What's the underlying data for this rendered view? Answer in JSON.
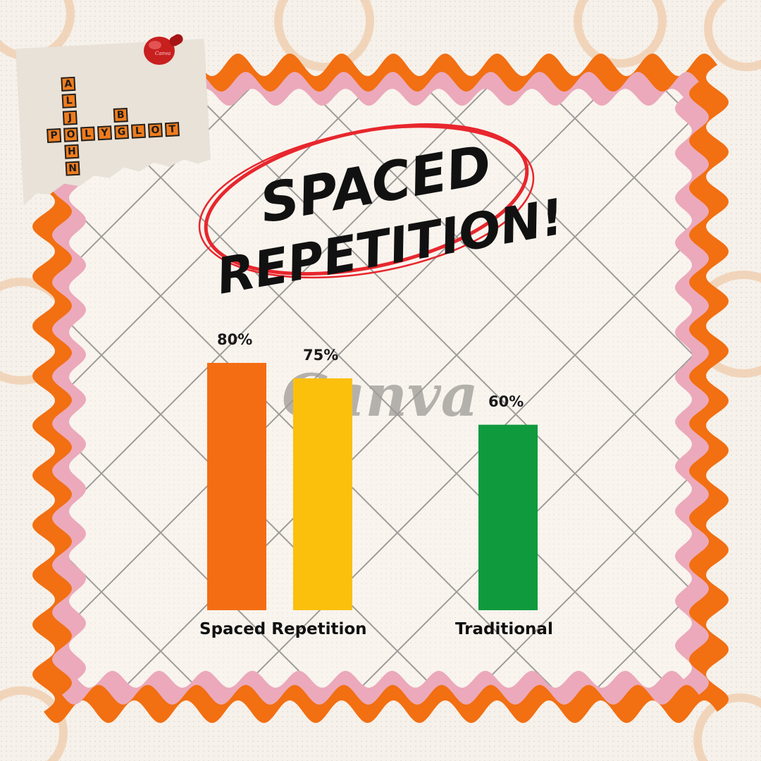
{
  "brand": {
    "logo_word_across": "POLYGLOT",
    "logo_word_down": "ALJOHN",
    "logo_letter_extra": "B",
    "watermark": "Canva",
    "pin_mark": "Canva"
  },
  "title": {
    "line1": "SPACED",
    "line2": "REPETITION!"
  },
  "colors": {
    "frame_outer": "#f26f12",
    "frame_inner": "#eba9bb",
    "paper": "#f9f4ee",
    "grid": "#555555",
    "circle": "#e8262d"
  },
  "chart_data": {
    "type": "bar",
    "ylim": [
      0,
      100
    ],
    "grid": false,
    "bars": [
      {
        "category": "Spaced Repetition",
        "value": 80,
        "label": "80%",
        "color": "#f46d12"
      },
      {
        "category": "Spaced Repetition",
        "value": 75,
        "label": "75%",
        "color": "#fbc00c"
      },
      {
        "category": "Traditional",
        "value": 60,
        "label": "60%",
        "color": "#109a3e"
      }
    ],
    "category_labels": [
      "Spaced Repetition",
      "Traditional"
    ]
  }
}
